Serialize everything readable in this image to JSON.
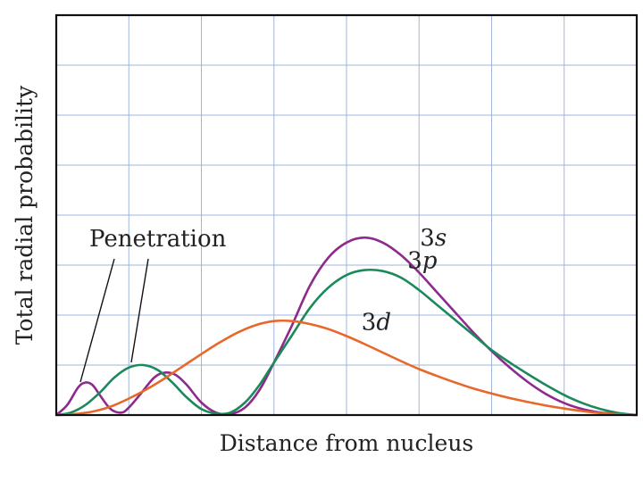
{
  "chart_data": {
    "type": "line",
    "title": "",
    "xlabel": "Distance from nucleus",
    "ylabel": "Total radial probability",
    "grid": true,
    "x_range": [
      0,
      16
    ],
    "y_range": [
      0,
      8
    ],
    "annotation": "Penetration",
    "series": [
      {
        "name": "3s",
        "label_main": "3",
        "label_sub": "s",
        "color": "#8e2a8e",
        "x": [
          0,
          0.3,
          0.6,
          0.8,
          1.0,
          1.2,
          1.5,
          1.8,
          2.0,
          2.3,
          2.7,
          3.0,
          3.3,
          3.6,
          4.0,
          4.4,
          4.8,
          5.2,
          5.6,
          6.0,
          6.5,
          7.0,
          7.5,
          8.0,
          8.5,
          9.0,
          9.5,
          10.0,
          10.5,
          11.0,
          11.5,
          12.0,
          12.5,
          13.0,
          13.5,
          14.0,
          14.5,
          15.0,
          15.5,
          16.0
        ],
        "y": [
          0,
          0.2,
          0.55,
          0.65,
          0.6,
          0.4,
          0.12,
          0.05,
          0.15,
          0.4,
          0.75,
          0.85,
          0.8,
          0.6,
          0.25,
          0.05,
          0.02,
          0.15,
          0.5,
          1.05,
          1.8,
          2.6,
          3.15,
          3.45,
          3.55,
          3.45,
          3.2,
          2.85,
          2.45,
          2.05,
          1.65,
          1.28,
          0.95,
          0.66,
          0.42,
          0.24,
          0.12,
          0.05,
          0.02,
          0
        ]
      },
      {
        "name": "3p",
        "label_main": "3",
        "label_sub": "p",
        "color": "#1a8a5a",
        "x": [
          0,
          0.4,
          0.8,
          1.2,
          1.6,
          2.0,
          2.4,
          2.8,
          3.2,
          3.6,
          4.0,
          4.4,
          4.8,
          5.2,
          5.6,
          6.0,
          6.5,
          7.0,
          7.5,
          8.0,
          8.5,
          9.0,
          9.5,
          10.0,
          10.5,
          11.0,
          11.5,
          12.0,
          12.5,
          13.0,
          13.5,
          14.0,
          14.5,
          15.0,
          15.5,
          16.0
        ],
        "y": [
          0,
          0.05,
          0.2,
          0.45,
          0.75,
          0.95,
          1.0,
          0.9,
          0.65,
          0.35,
          0.12,
          0.03,
          0.05,
          0.25,
          0.6,
          1.05,
          1.6,
          2.15,
          2.55,
          2.8,
          2.9,
          2.88,
          2.75,
          2.5,
          2.2,
          1.9,
          1.6,
          1.3,
          1.05,
          0.82,
          0.6,
          0.4,
          0.24,
          0.12,
          0.04,
          0
        ]
      },
      {
        "name": "3d",
        "label_main": "3",
        "label_sub": "d",
        "color": "#e8672a",
        "x": [
          0,
          0.5,
          1.0,
          1.5,
          2.0,
          2.5,
          3.0,
          3.5,
          4.0,
          4.5,
          5.0,
          5.5,
          6.0,
          6.5,
          7.0,
          7.5,
          8.0,
          8.5,
          9.0,
          9.5,
          10.0,
          10.5,
          11.0,
          11.5,
          12.0,
          12.5,
          13.0,
          13.5,
          14.0,
          14.5,
          15.0,
          15.5,
          16.0
        ],
        "y": [
          0,
          0.02,
          0.07,
          0.17,
          0.33,
          0.52,
          0.74,
          0.98,
          1.22,
          1.45,
          1.65,
          1.8,
          1.88,
          1.88,
          1.82,
          1.72,
          1.58,
          1.42,
          1.25,
          1.08,
          0.92,
          0.78,
          0.65,
          0.53,
          0.43,
          0.34,
          0.26,
          0.19,
          0.13,
          0.08,
          0.04,
          0.015,
          0
        ]
      }
    ]
  }
}
